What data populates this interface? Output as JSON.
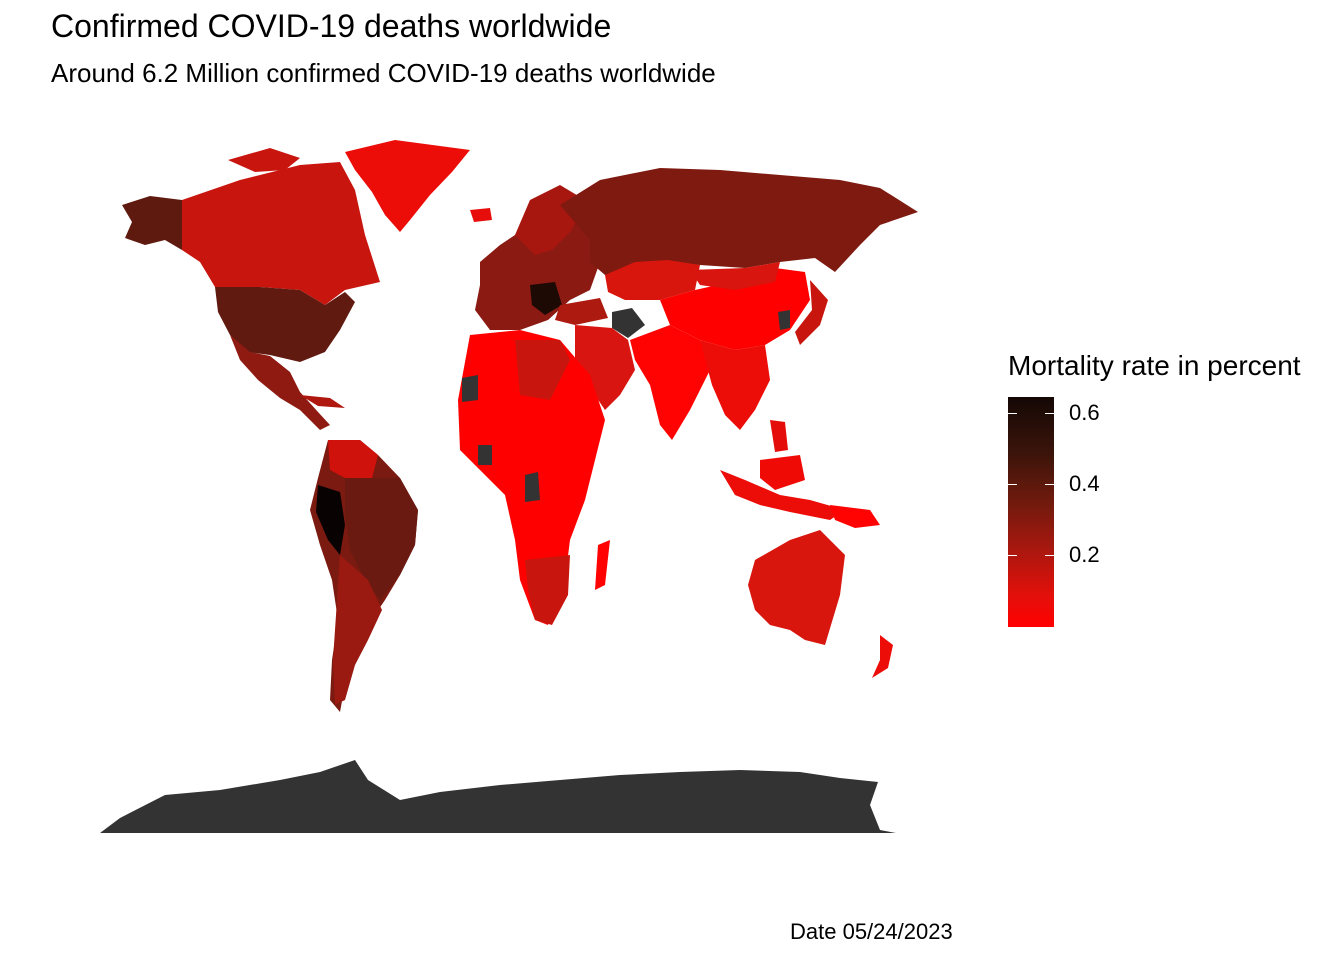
{
  "title": "Confirmed COVID-19 deaths worldwide",
  "subtitle": "Around 6.2 Million confirmed COVID-19 deaths worldwide",
  "caption": "Date 05/24/2023",
  "legend": {
    "title": "Mortality rate in percent",
    "ticks": [
      "0.6",
      "0.4",
      "0.2"
    ],
    "tick_values": [
      0.6,
      0.4,
      0.2
    ],
    "scale_low_color": "#ff0000",
    "scale_high_color": "#140805",
    "no_data_color": "#333333"
  },
  "map": {
    "type": "choropleth",
    "projection": "world",
    "no_data_regions": [
      "Antarctica",
      "Turkmenistan",
      "Western Sahara",
      "Guinea",
      "Gabon / Congo"
    ]
  }
}
